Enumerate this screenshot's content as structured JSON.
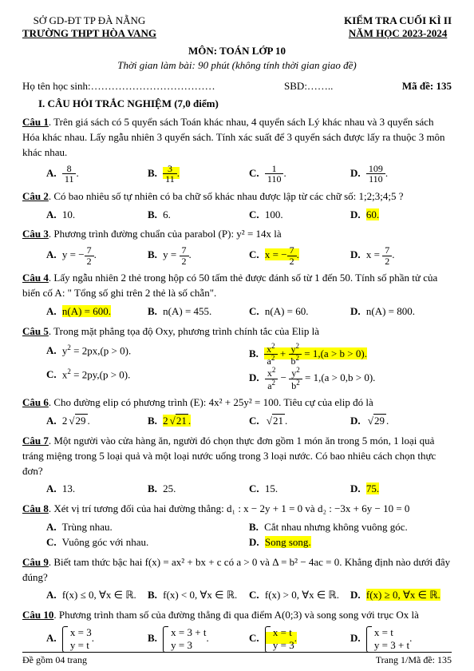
{
  "header": {
    "dept": "SỞ GD-ĐT TP ĐÀ NẴNG",
    "school": "TRƯỜNG THPT HÒA VANG",
    "exam": "KIỂM TRA CUỐI KÌ II",
    "year": "NĂM HỌC 2023-2024",
    "subject": "MÔN: TOÁN LỚP 10",
    "time": "Thời gian làm bài: 90 phút (không tính thời gian giao đề)",
    "studentLabel": "Họ tên học sinh:………………………………",
    "sbd": "SBD:……..",
    "code": "Mã đề: 135"
  },
  "section": "I. CÂU HỎI TRẮC NGHIỆM (7,0 điểm)",
  "q1": {
    "label": "Câu 1",
    "text": ". Trên giá sách có 5 quyển sách Toán khác nhau, 4 quyển sách Lý khác nhau và 3 quyển sách Hóa khác nhau. Lấy ngẫu nhiên 3 quyển sách. Tính xác suất để 3 quyển sách được lấy ra thuộc 3 môn khác nhau."
  },
  "q2": {
    "label": "Câu 2",
    "text": ". Có bao nhiêu số tự nhiên có ba chữ số khác nhau được lập từ các chữ số: 1;2;3;4;5 ?",
    "A": "10.",
    "B": "6.",
    "C": "100.",
    "D": "60."
  },
  "q3": {
    "label": "Câu 3",
    "text": ". Phương trình đường chuẩn của parabol (P): y² = 14x là"
  },
  "q4": {
    "label": "Câu 4",
    "text": ". Lấy ngẫu nhiên 2 thẻ trong hộp có 50 tấm thẻ được đánh số từ 1 đến 50. Tính số phần tử của biến cố A: \" Tổng số ghi trên 2 thẻ là số chẵn\".",
    "A": "n(A) = 600.",
    "B": "n(A) = 455.",
    "C": "n(A) = 60.",
    "D": "n(A) = 800."
  },
  "q5": {
    "label": "Câu 5",
    "text": ". Trong mặt phẳng tọa độ Oxy, phương trình chính tắc của Elip là"
  },
  "q6": {
    "label": "Câu 6",
    "text": ". Cho đường elip có phương trình (E): 4x² + 25y² = 100. Tiêu cự của elip đó là"
  },
  "q7": {
    "label": "Câu 7",
    "text": ". Một người vào cửa hàng ăn, người đó chọn thực đơn gồm 1 món ăn trong 5 món, 1 loại quả tráng miệng trong 5 loại quả và một loại nước uống trong 3 loại nước. Có bao nhiêu cách chọn thực đơn?",
    "A": "13.",
    "B": "25.",
    "C": "15.",
    "D": "75."
  },
  "q8": {
    "label": "Câu 8",
    "text": ". Xét vị trí tương đối của hai đường thẳng: d₁ : x − 2y + 1 = 0 và d₂ : −3x + 6y − 10 = 0",
    "A": "Trùng nhau.",
    "B": "Cắt nhau nhưng không vuông góc.",
    "C": "Vuông góc với nhau.",
    "D": "Song song."
  },
  "q9": {
    "label": "Câu 9",
    "text": ". Biết tam thức bậc hai f(x) = ax² + bx + c có a > 0 và Δ = b² − 4ac = 0. Khẳng định nào dưới đây đúng?",
    "A": "f(x) ≤ 0, ∀x ∈ ℝ.",
    "B": "f(x) < 0, ∀x ∈ ℝ.",
    "C": "f(x) > 0, ∀x ∈ ℝ.",
    "D": "f(x) ≥ 0, ∀x ∈ ℝ."
  },
  "q10": {
    "label": "Câu 10",
    "text": ". Phương trình tham số của đường thẳng đi qua điểm A(0;3) và song song với trục Ox là"
  },
  "footer": {
    "left": "Đề gồm 04 trang",
    "right": "Trang 1/Mã đề: 135"
  }
}
